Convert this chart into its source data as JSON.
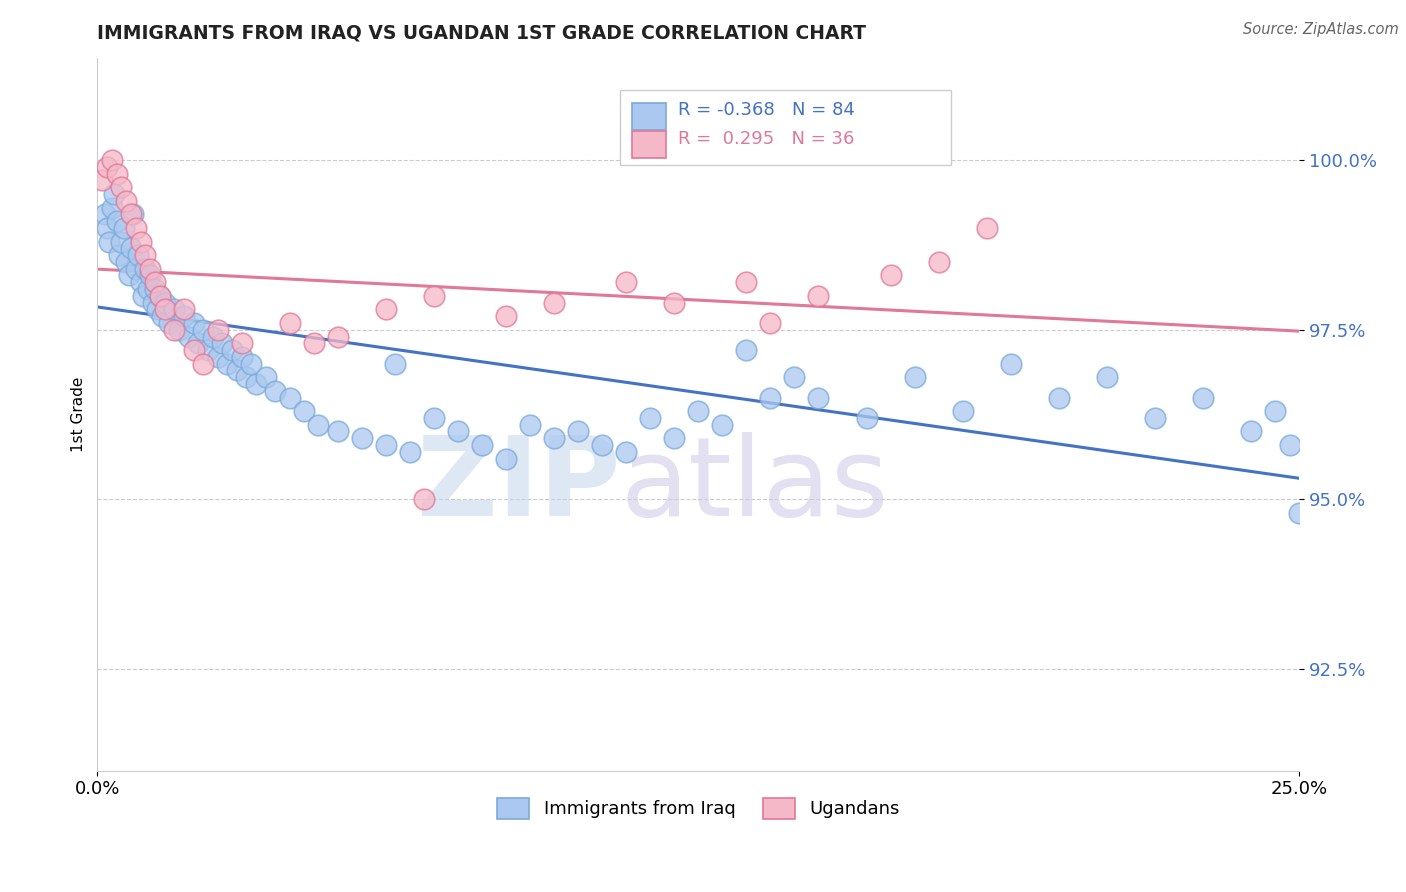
{
  "title": "IMMIGRANTS FROM IRAQ VS UGANDAN 1ST GRADE CORRELATION CHART",
  "source": "Source: ZipAtlas.com",
  "ylabel": "1st Grade",
  "yticks": [
    92.5,
    95.0,
    97.5,
    100.0
  ],
  "ytick_labels": [
    "92.5%",
    "95.0%",
    "97.5%",
    "100.0%"
  ],
  "xlim": [
    0.0,
    25.0
  ],
  "ylim": [
    91.0,
    101.5
  ],
  "R_iraq": -0.368,
  "N_iraq": 84,
  "R_uganda": 0.295,
  "N_uganda": 36,
  "iraq_color": "#aac8f0",
  "iraq_edge": "#7aaad8",
  "uganda_color": "#f5b8c8",
  "uganda_edge": "#e07898",
  "trend_iraq_color": "#4472c4",
  "trend_uganda_color": "#e07898",
  "legend_iraq_label": "Immigrants from Iraq",
  "legend_uganda_label": "Ugandans",
  "iraq_x": [
    0.15,
    0.2,
    0.25,
    0.3,
    0.35,
    0.4,
    0.45,
    0.5,
    0.55,
    0.6,
    0.65,
    0.7,
    0.75,
    0.8,
    0.85,
    0.9,
    0.95,
    1.0,
    1.05,
    1.1,
    1.15,
    1.2,
    1.25,
    1.3,
    1.35,
    1.4,
    1.5,
    1.6,
    1.7,
    1.8,
    1.9,
    2.0,
    2.1,
    2.2,
    2.3,
    2.4,
    2.5,
    2.6,
    2.7,
    2.8,
    2.9,
    3.0,
    3.1,
    3.2,
    3.3,
    3.5,
    3.7,
    4.0,
    4.3,
    4.6,
    5.0,
    5.5,
    6.0,
    6.5,
    7.0,
    7.5,
    8.0,
    8.5,
    9.0,
    9.5,
    10.0,
    10.5,
    11.0,
    11.5,
    12.0,
    12.5,
    13.0,
    13.5,
    14.0,
    14.5,
    15.0,
    16.0,
    17.0,
    18.0,
    19.0,
    20.0,
    21.0,
    22.0,
    23.0,
    24.0,
    24.5,
    24.8,
    25.0,
    6.2
  ],
  "iraq_y": [
    99.2,
    99.0,
    98.8,
    99.3,
    99.5,
    99.1,
    98.6,
    98.8,
    99.0,
    98.5,
    98.3,
    98.7,
    99.2,
    98.4,
    98.6,
    98.2,
    98.0,
    98.4,
    98.1,
    98.3,
    97.9,
    98.1,
    97.8,
    98.0,
    97.7,
    97.9,
    97.6,
    97.8,
    97.5,
    97.7,
    97.4,
    97.6,
    97.3,
    97.5,
    97.2,
    97.4,
    97.1,
    97.3,
    97.0,
    97.2,
    96.9,
    97.1,
    96.8,
    97.0,
    96.7,
    96.8,
    96.6,
    96.5,
    96.3,
    96.1,
    96.0,
    95.9,
    95.8,
    95.7,
    96.2,
    96.0,
    95.8,
    95.6,
    96.1,
    95.9,
    96.0,
    95.8,
    95.7,
    96.2,
    95.9,
    96.3,
    96.1,
    97.2,
    96.5,
    96.8,
    96.5,
    96.2,
    96.8,
    96.3,
    97.0,
    96.5,
    96.8,
    96.2,
    96.5,
    96.0,
    96.3,
    95.8,
    94.8,
    97.0
  ],
  "uganda_x": [
    0.1,
    0.2,
    0.3,
    0.4,
    0.5,
    0.6,
    0.7,
    0.8,
    0.9,
    1.0,
    1.1,
    1.2,
    1.3,
    1.4,
    1.6,
    1.8,
    2.0,
    2.5,
    3.0,
    4.0,
    5.0,
    6.0,
    7.0,
    8.5,
    9.5,
    11.0,
    12.0,
    13.5,
    14.0,
    15.0,
    16.5,
    17.5,
    18.5,
    4.5,
    2.2,
    6.8
  ],
  "uganda_y": [
    99.7,
    99.9,
    100.0,
    99.8,
    99.6,
    99.4,
    99.2,
    99.0,
    98.8,
    98.6,
    98.4,
    98.2,
    98.0,
    97.8,
    97.5,
    97.8,
    97.2,
    97.5,
    97.3,
    97.6,
    97.4,
    97.8,
    98.0,
    97.7,
    97.9,
    98.2,
    97.9,
    98.2,
    97.6,
    98.0,
    98.3,
    98.5,
    99.0,
    97.3,
    97.0,
    95.0
  ]
}
